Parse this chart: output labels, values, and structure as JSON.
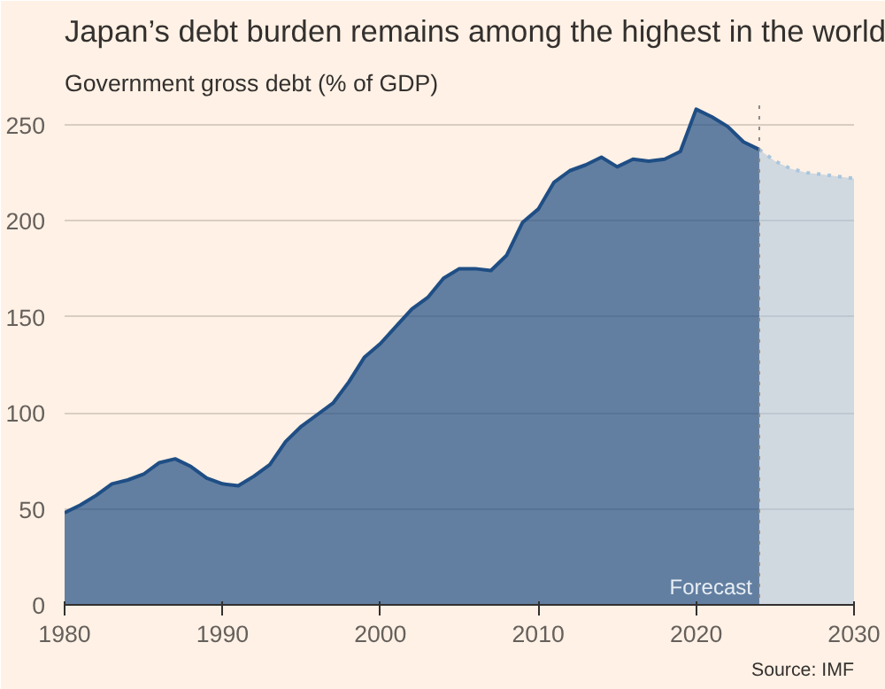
{
  "chart_data": {
    "type": "area",
    "title": "Japan’s debt burden remains among the highest in the world",
    "subtitle": "Government gross debt (% of GDP)",
    "series": [
      {
        "color": "#1f4e85",
        "line_style": "solid",
        "x": [
          1980,
          1981,
          1982,
          1983,
          1984,
          1985,
          1986,
          1987,
          1988,
          1989,
          1990,
          1991,
          1992,
          1993,
          1994,
          1995,
          1996,
          1997,
          1998,
          1999,
          2000,
          2001,
          2002,
          2003,
          2004,
          2005,
          2006,
          2007,
          2008,
          2009,
          2010,
          2011,
          2012,
          2013,
          2014,
          2015,
          2016,
          2017,
          2018,
          2019,
          2020,
          2021,
          2022,
          2023,
          2024
        ],
        "values": [
          48,
          52,
          57,
          63,
          65,
          68,
          74,
          76,
          72,
          66,
          63,
          62,
          67,
          73,
          85,
          93,
          99,
          105,
          116,
          129,
          136,
          145,
          154,
          160,
          170,
          175,
          175,
          174,
          182,
          199,
          206,
          220,
          226,
          229,
          233,
          228,
          232,
          231,
          232,
          236,
          258,
          254,
          249,
          241,
          237
        ]
      },
      {
        "color": "#a9c5dc",
        "line_style": "dotted",
        "x": [
          2024,
          2025,
          2026,
          2027,
          2028,
          2029,
          2030
        ],
        "values": [
          237,
          231,
          227,
          225,
          224,
          223,
          222
        ]
      }
    ],
    "xlim": [
      1980,
      2030
    ],
    "xticks": [
      1980,
      1990,
      2000,
      2010,
      2020,
      2030
    ],
    "ylim": [
      0,
      260
    ],
    "yticks": [
      0,
      50,
      100,
      150,
      200,
      250
    ],
    "grid": "y",
    "ref_lines": [
      {
        "axis": "x",
        "value": 2024,
        "label": "Forecast",
        "color": "#8a8a8a",
        "line_style": "dotted"
      }
    ],
    "annotations": [
      "Source: IMF"
    ]
  }
}
